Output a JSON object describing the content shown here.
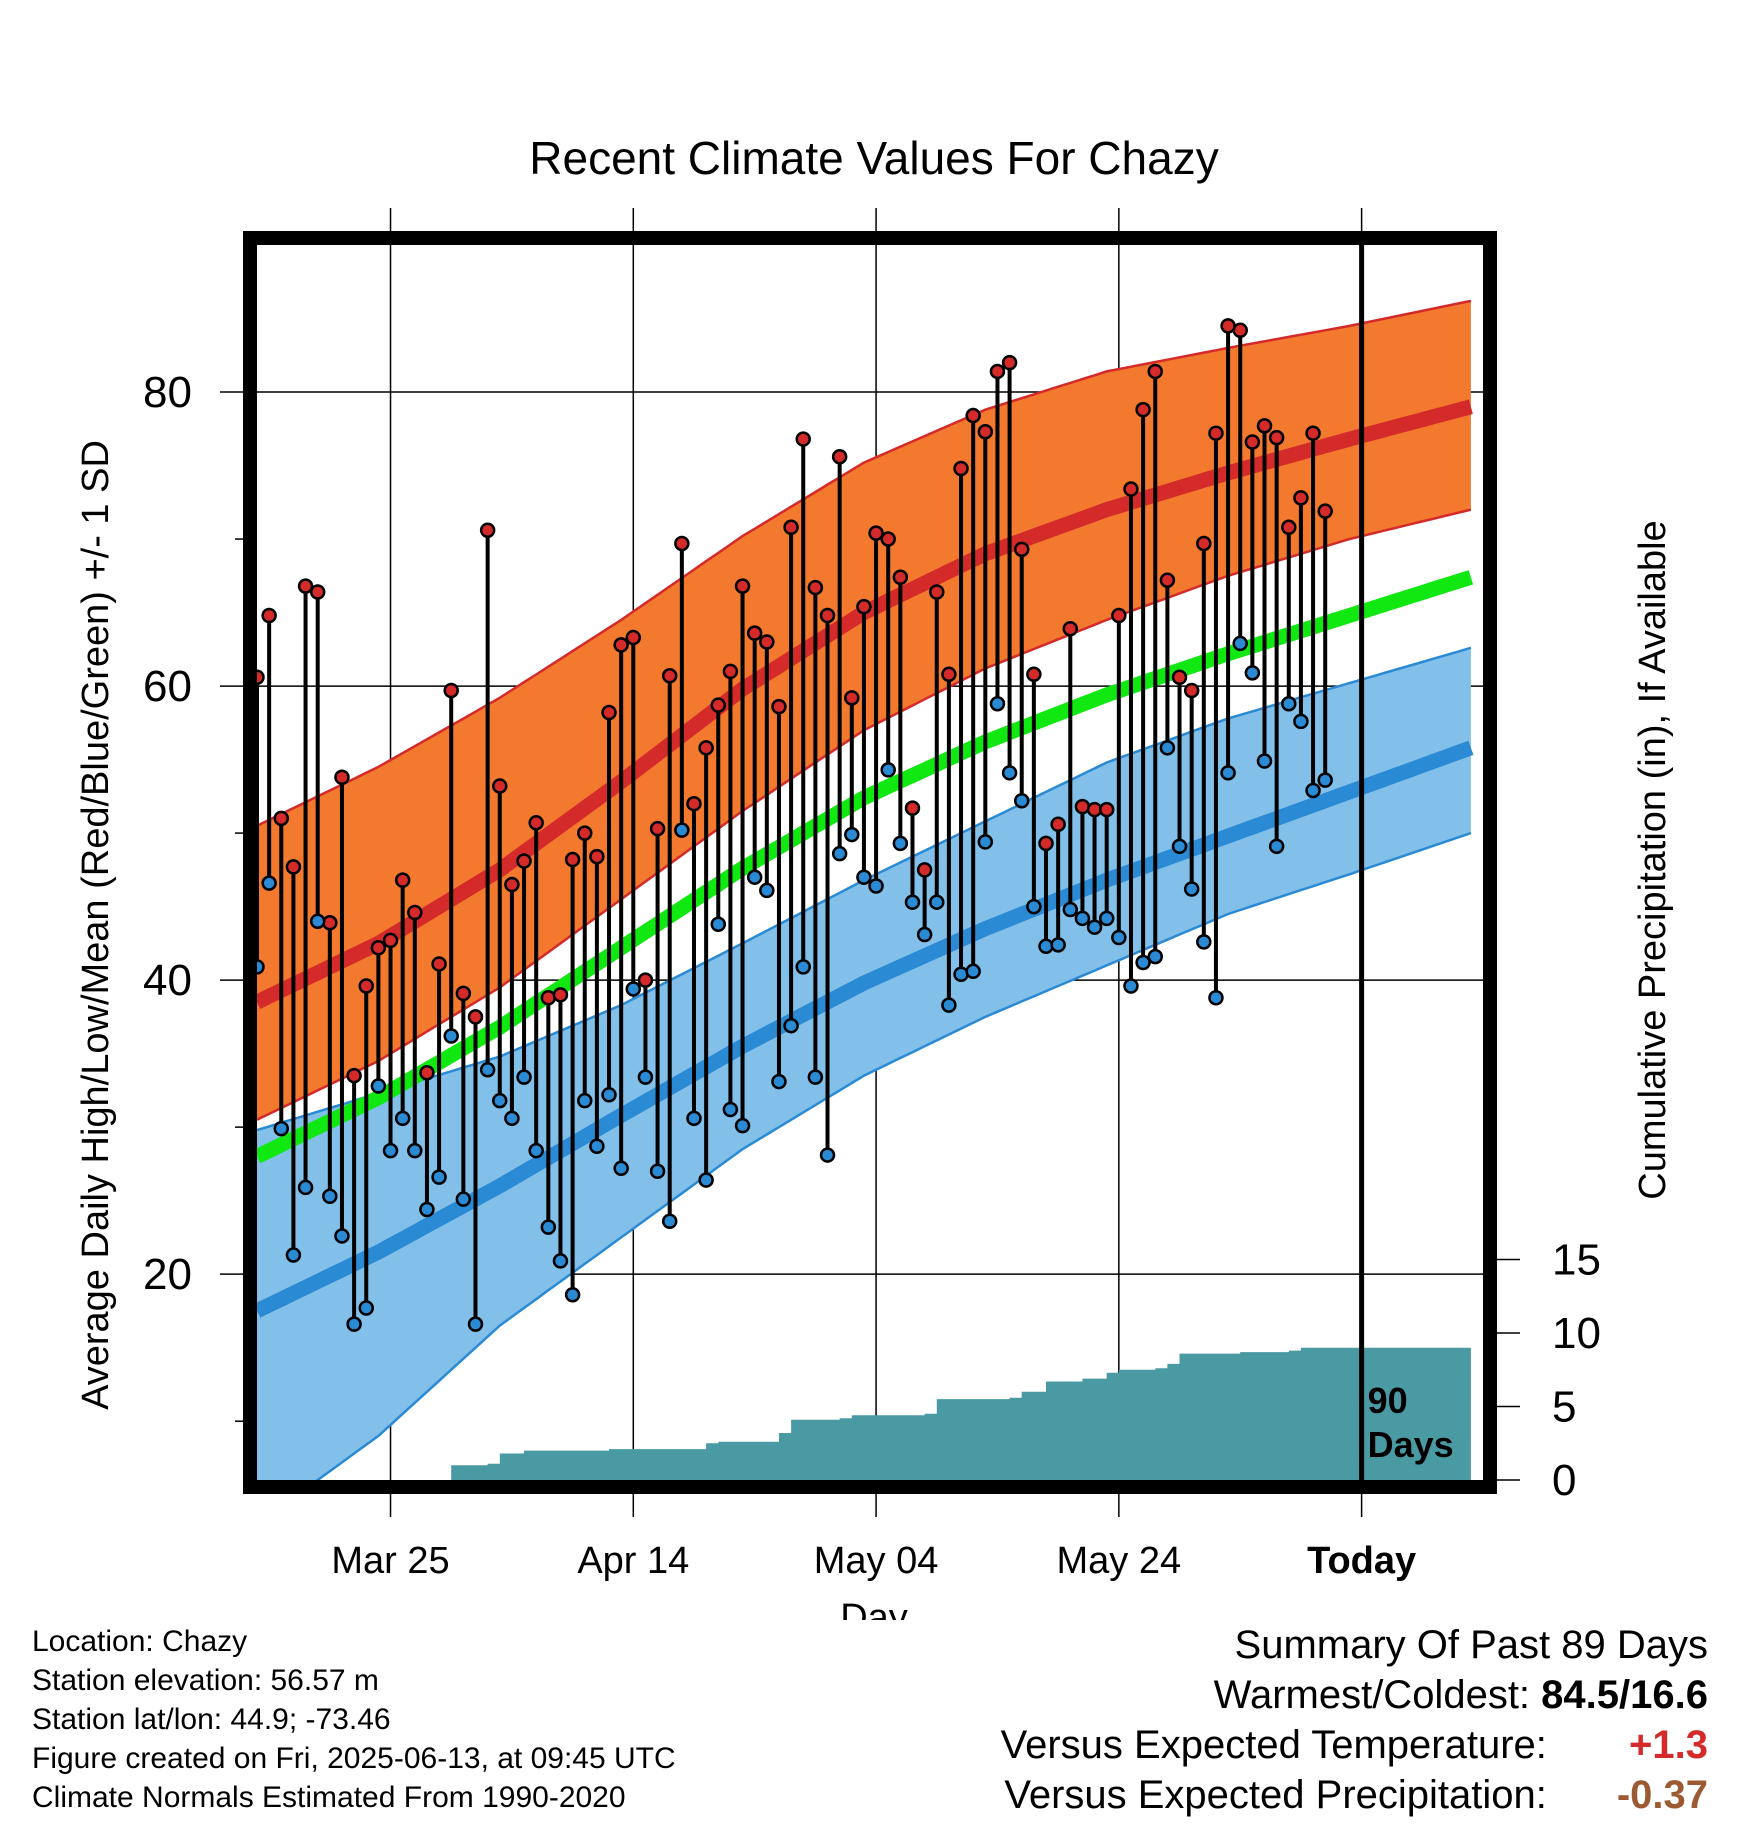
{
  "title": "Recent Climate Values For Chazy",
  "chart_data": {
    "type": "line",
    "title": "Recent Climate Values For Chazy",
    "xlabel": "Day",
    "ylabel": "Average Daily High/Low/Mean (Red/Blue/Green) +/- 1 SD",
    "y2label": "Cumulative Precipitation (in), If Available",
    "x_tick_labels": [
      "Mar 25",
      "Apr 14",
      "May 04",
      "May 24",
      "Today"
    ],
    "x_tick_days": [
      11,
      31,
      51,
      71,
      91
    ],
    "x_range_days": [
      0,
      101
    ],
    "y_ticks": [
      20,
      40,
      60,
      80
    ],
    "ylim": [
      6,
      90
    ],
    "y2_ticks": [
      0,
      5,
      10,
      15
    ],
    "y2lim": [
      0,
      84
    ],
    "grid": true,
    "today_marker_label": "90\nDays",
    "series": [
      {
        "name": "Daily High",
        "color": "#d42a2a",
        "values": [
          60.6,
          64.8,
          51.0,
          47.7,
          66.8,
          66.4,
          43.9,
          53.8,
          33.5,
          39.6,
          42.2,
          42.7,
          46.8,
          44.6,
          33.7,
          41.1,
          59.7,
          39.1,
          37.5,
          70.6,
          53.2,
          46.5,
          48.1,
          50.7,
          38.8,
          39.0,
          48.2,
          50.0,
          48.4,
          58.2,
          62.8,
          63.3,
          40.0,
          50.3,
          60.7,
          69.7,
          52.0,
          55.8,
          58.7,
          61.0,
          66.8,
          63.6,
          63.0,
          58.6,
          70.8,
          76.8,
          66.7,
          64.8,
          75.6,
          59.2,
          65.4,
          70.4,
          70.0,
          67.4,
          51.7,
          47.5,
          66.4,
          60.8,
          74.8,
          78.4,
          77.3,
          81.4,
          82.0,
          69.3,
          60.8,
          49.3,
          50.6,
          63.9,
          51.8,
          51.6,
          51.6,
          64.8,
          73.4,
          78.8,
          81.4,
          67.2,
          60.6,
          59.7,
          69.7,
          77.2,
          84.5,
          84.2,
          76.6,
          77.7,
          76.9,
          70.8,
          72.8,
          77.2,
          71.9
        ]
      },
      {
        "name": "Daily Low",
        "color": "#2a8ad4",
        "values": [
          40.9,
          46.6,
          29.9,
          21.3,
          25.9,
          44.0,
          25.3,
          22.6,
          16.6,
          17.7,
          32.8,
          28.4,
          30.6,
          28.4,
          24.4,
          26.6,
          36.2,
          25.1,
          16.6,
          33.9,
          31.8,
          30.6,
          33.4,
          28.4,
          23.2,
          20.9,
          18.6,
          31.8,
          28.7,
          32.2,
          27.2,
          39.4,
          33.4,
          27.0,
          23.6,
          50.2,
          30.6,
          26.4,
          43.8,
          31.2,
          30.1,
          47.0,
          46.1,
          33.1,
          36.9,
          40.9,
          33.4,
          28.1,
          48.6,
          49.9,
          47.0,
          46.4,
          54.3,
          49.3,
          45.3,
          43.1,
          45.3,
          38.3,
          40.4,
          40.6,
          49.4,
          58.8,
          54.1,
          52.2,
          45.0,
          42.3,
          42.4,
          44.8,
          44.2,
          43.6,
          44.2,
          42.9,
          39.6,
          41.2,
          41.6,
          55.8,
          49.1,
          46.2,
          42.6,
          38.8,
          54.1,
          62.9,
          60.9,
          54.9,
          49.1,
          58.8,
          57.6,
          52.9,
          53.6
        ]
      },
      {
        "name": "Normal High",
        "color": "#d42a2a",
        "values": [
          [
            0,
            38.5
          ],
          [
            10,
            42.5
          ],
          [
            20,
            47.5
          ],
          [
            30,
            53.5
          ],
          [
            40,
            59.8
          ],
          [
            50,
            65.0
          ],
          [
            60,
            69.0
          ],
          [
            70,
            72.0
          ],
          [
            80,
            74.5
          ],
          [
            90,
            76.8
          ],
          [
            100,
            79.0
          ]
        ]
      },
      {
        "name": "Normal Low",
        "color": "#2a8ad4",
        "values": [
          [
            0,
            17.5
          ],
          [
            10,
            21.5
          ],
          [
            20,
            26.0
          ],
          [
            30,
            30.8
          ],
          [
            40,
            35.5
          ],
          [
            50,
            39.8
          ],
          [
            60,
            43.5
          ],
          [
            70,
            46.8
          ],
          [
            80,
            49.8
          ],
          [
            90,
            52.8
          ],
          [
            100,
            55.8
          ]
        ]
      },
      {
        "name": "Normal Mean",
        "color": "#11e811",
        "values": [
          [
            0,
            28.0
          ],
          [
            10,
            32.0
          ],
          [
            20,
            36.8
          ],
          [
            30,
            42.2
          ],
          [
            40,
            47.6
          ],
          [
            50,
            52.4
          ],
          [
            60,
            56.2
          ],
          [
            70,
            59.4
          ],
          [
            80,
            62.2
          ],
          [
            90,
            64.8
          ],
          [
            100,
            67.4
          ]
        ]
      },
      {
        "name": "Cumulative Precipitation",
        "color": "#4a9aa4",
        "axis": "y2",
        "values": [
          [
            0,
            0
          ],
          [
            14,
            0
          ],
          [
            16,
            1.0
          ],
          [
            19,
            1.1
          ],
          [
            20,
            1.8
          ],
          [
            22,
            2.0
          ],
          [
            29,
            2.1
          ],
          [
            36,
            2.1
          ],
          [
            37,
            2.5
          ],
          [
            38,
            2.6
          ],
          [
            42,
            2.6
          ],
          [
            43,
            3.2
          ],
          [
            44,
            4.1
          ],
          [
            48,
            4.2
          ],
          [
            49,
            4.4
          ],
          [
            55,
            4.5
          ],
          [
            56,
            5.5
          ],
          [
            62,
            5.6
          ],
          [
            63,
            6.0
          ],
          [
            65,
            6.7
          ],
          [
            68,
            6.9
          ],
          [
            70,
            7.3
          ],
          [
            71,
            7.5
          ],
          [
            74,
            7.6
          ],
          [
            75,
            7.9
          ],
          [
            76,
            8.6
          ],
          [
            81,
            8.7
          ],
          [
            85,
            8.8
          ],
          [
            86,
            9.0
          ],
          [
            100,
            9.0
          ]
        ]
      }
    ],
    "bands": [
      {
        "name": "High +/- 1 SD",
        "color": "#f2792e",
        "edge": "#d42a2a",
        "lower": [
          [
            0,
            30.5
          ],
          [
            10,
            34.5
          ],
          [
            20,
            39.5
          ],
          [
            30,
            45.5
          ],
          [
            40,
            51.5
          ],
          [
            50,
            57.0
          ],
          [
            60,
            61.2
          ],
          [
            70,
            64.5
          ],
          [
            80,
            67.5
          ],
          [
            90,
            70.0
          ],
          [
            100,
            72.0
          ]
        ],
        "upper": [
          [
            0,
            50.5
          ],
          [
            10,
            54.5
          ],
          [
            20,
            59.2
          ],
          [
            30,
            64.5
          ],
          [
            40,
            70.2
          ],
          [
            50,
            75.2
          ],
          [
            60,
            78.8
          ],
          [
            70,
            81.4
          ],
          [
            80,
            83.0
          ],
          [
            90,
            84.5
          ],
          [
            100,
            86.2
          ]
        ]
      },
      {
        "name": "Low +/- 1 SD",
        "color": "#82c0ea",
        "edge": "#2a8ad4",
        "lower": [
          [
            0,
            3.0
          ],
          [
            10,
            9.0
          ],
          [
            20,
            16.5
          ],
          [
            30,
            22.5
          ],
          [
            40,
            28.5
          ],
          [
            50,
            33.5
          ],
          [
            60,
            37.5
          ],
          [
            70,
            41.0
          ],
          [
            80,
            44.5
          ],
          [
            90,
            47.2
          ],
          [
            100,
            50.0
          ]
        ],
        "upper": [
          [
            0,
            29.8
          ],
          [
            10,
            32.3
          ],
          [
            20,
            34.8
          ],
          [
            30,
            38.3
          ],
          [
            40,
            42.5
          ],
          [
            50,
            46.8
          ],
          [
            60,
            50.8
          ],
          [
            70,
            54.8
          ],
          [
            80,
            57.8
          ],
          [
            90,
            60.2
          ],
          [
            100,
            62.6
          ]
        ]
      }
    ]
  },
  "footer": {
    "location": "Location: Chazy",
    "elevation": "Station elevation: 56.57 m",
    "latlon": "Station lat/lon: 44.9; -73.46",
    "created": "Figure created on Fri, 2025-06-13, at 09:45 UTC",
    "normals": "Climate Normals Estimated From 1990-2020"
  },
  "summary": {
    "heading": "Summary Of Past 89 Days",
    "warmest_label": "Warmest/Coldest:",
    "warmest_value": "84.5/16.6",
    "temp_label": "Versus Expected Temperature:",
    "temp_value": "+1.3",
    "temp_color": "#d42a2a",
    "precip_label": "Versus Expected Precipitation:",
    "precip_value": "-0.37",
    "precip_color": "#9c5a32"
  }
}
